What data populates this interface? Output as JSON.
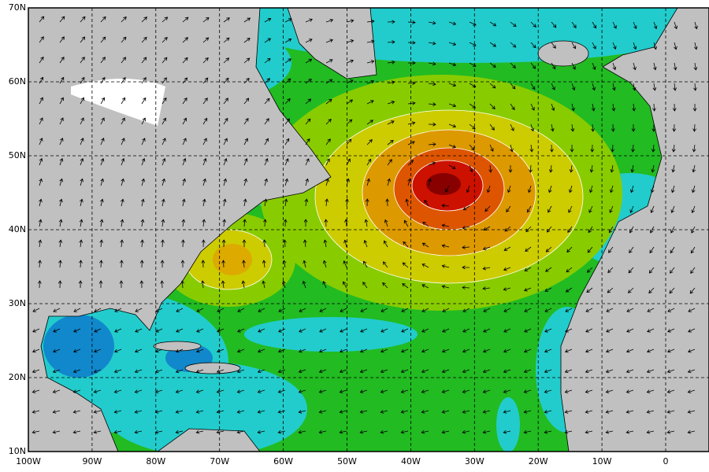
{
  "map": {
    "lat_labels": [
      "70N",
      "60N",
      "50N",
      "40N",
      "30N",
      "20N",
      "10N"
    ],
    "lon_labels": [
      "100W",
      "90W",
      "80W",
      "70W",
      "60W",
      "50W",
      "40W",
      "30W",
      "20W",
      "10W",
      "0"
    ]
  }
}
